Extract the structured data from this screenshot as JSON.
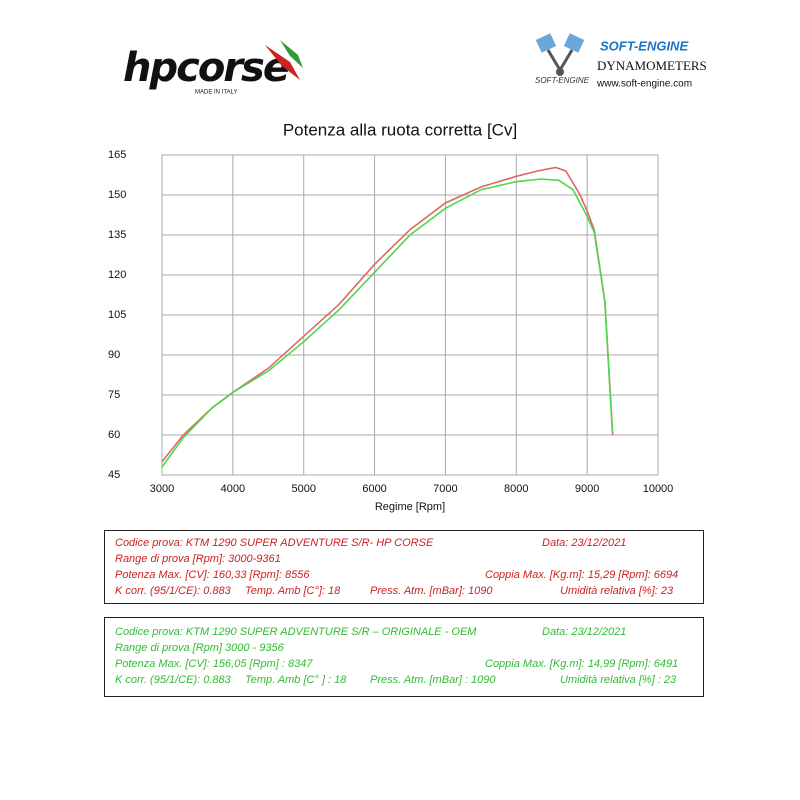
{
  "header": {
    "left_logo": {
      "text": "hpcorse",
      "tagline": "MADE IN ITALY"
    },
    "right_logo": {
      "brand": "SOFT-ENGINE",
      "small_brand": "SOFT-ENGINE",
      "subtitle": "DYNAMOMETERS",
      "url": "www.soft-engine.com"
    }
  },
  "chart_data": {
    "type": "line",
    "title": "Potenza alla ruota corretta [Cv]",
    "x_label": "Regime [Rpm]",
    "xlim": [
      3000,
      10000
    ],
    "xticks": [
      3000,
      4000,
      5000,
      6000,
      7000,
      8000,
      9000,
      10000
    ],
    "ylim": [
      45,
      165
    ],
    "yticks": [
      45,
      60,
      75,
      90,
      105,
      120,
      135,
      150,
      165
    ],
    "grid": true,
    "series": [
      {
        "color": "#e06666",
        "x": [
          3000,
          3300,
          3700,
          4000,
          4500,
          5000,
          5500,
          6000,
          6500,
          7000,
          7500,
          8000,
          8300,
          8556,
          8700,
          8900,
          9000,
          9100,
          9250,
          9361
        ],
        "values": [
          50,
          60,
          70,
          76,
          85,
          97,
          109,
          124,
          137,
          147,
          153,
          157,
          159,
          160.3,
          159,
          150,
          144,
          137,
          110,
          60
        ]
      },
      {
        "color": "#4fd64f",
        "x": [
          3000,
          3300,
          3700,
          4000,
          4500,
          5000,
          5500,
          6000,
          6500,
          7000,
          7500,
          8000,
          8347,
          8600,
          8800,
          9000,
          9100,
          9250,
          9356
        ],
        "values": [
          48,
          59,
          70,
          76,
          84,
          95,
          107,
          121,
          135,
          145,
          152,
          155,
          156,
          155.5,
          152,
          142,
          136,
          110,
          61
        ]
      }
    ]
  },
  "info_boxes": [
    {
      "color": "#cc2222",
      "lines": [
        [
          "Codice prova: KTM 1290 SUPER ADVENTURE S/R- HP CORSE",
          "Data: 23/12/2021"
        ],
        [
          "Range di prova [Rpm]: 3000-9361"
        ],
        [
          "Potenza Max. [CV]:  160,33 [Rpm]: 8556",
          "Coppia Max. [Kg.m]:  15,29  [Rpm]: 6694"
        ],
        [
          "K corr. (95/1/CE): 0.883",
          "Temp. Amb [C°]: 18",
          "Press. Atm. [mBar]: 1090",
          "Umidità relativa [%]: 23"
        ]
      ]
    },
    {
      "color": "#33bb33",
      "lines": [
        [
          "Codice prova: KTM 1290 SUPER ADVENTURE S/R – ORIGINALE - OEM",
          "Data: 23/12/2021"
        ],
        [
          "Range di prova [Rpm] 3000 - 9356"
        ],
        [
          "Potenza Max. [CV]:  156,05  [Rpm] : 8347",
          "Coppia Max. [Kg.m]:  14,99  [Rpm]: 6491"
        ],
        [
          "K corr. (95/1/CE): 0.883",
          "Temp. Amb [C° ] : 18",
          "Press. Atm. [mBar] : 1090",
          "Umidità relativa [%] : 23"
        ]
      ]
    }
  ]
}
